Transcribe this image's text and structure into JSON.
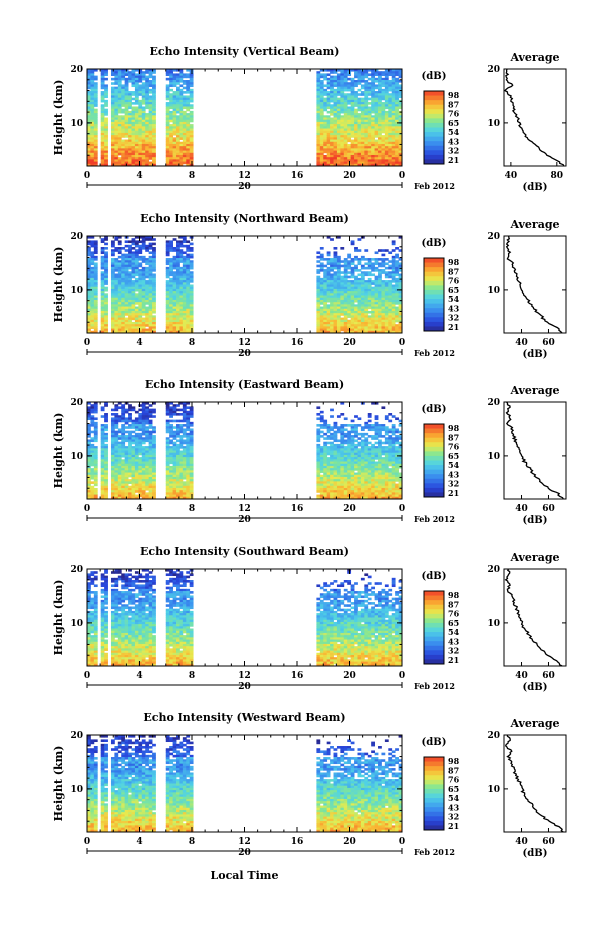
{
  "figure": {
    "x_axis_label": "Local Time",
    "date_label": "Feb 2012",
    "day_label": "20"
  },
  "chart_data": [
    {
      "type": "heatmap",
      "title": "Echo Intensity (Vertical Beam)",
      "ylabel": "Height (km)",
      "x_ticks": [
        "0",
        "4",
        "8",
        "12",
        "16",
        "20",
        "0"
      ],
      "y_ticks": [
        "20",
        "10"
      ],
      "xlim": [
        0,
        24
      ],
      "ylim": [
        2,
        20
      ],
      "gaps_hours": [
        [
          0.7,
          0.95
        ],
        [
          1.5,
          1.75
        ],
        [
          5.3,
          6.0
        ],
        [
          8.0,
          17.5
        ]
      ],
      "colorbar": {
        "unit": "(dB)",
        "levels": [
          "98",
          "87",
          "76",
          "65",
          "54",
          "43",
          "32",
          "21"
        ]
      },
      "average": {
        "title": "Average",
        "xlabel": "(dB)",
        "x_ticks": [
          "40",
          "80"
        ],
        "y_ticks": [
          "20",
          "10"
        ],
        "xlim": [
          34,
          88
        ],
        "profile": [
          [
            20,
            37
          ],
          [
            19,
            37
          ],
          [
            18,
            36
          ],
          [
            17,
            41
          ],
          [
            16,
            35
          ],
          [
            15,
            40
          ],
          [
            14,
            41
          ],
          [
            13,
            42
          ],
          [
            12,
            43
          ],
          [
            11,
            46
          ],
          [
            10,
            47
          ],
          [
            9,
            49
          ],
          [
            8,
            52
          ],
          [
            7,
            55
          ],
          [
            6,
            60
          ],
          [
            5,
            66
          ],
          [
            4,
            72
          ],
          [
            3,
            81
          ],
          [
            2,
            86
          ]
        ]
      }
    },
    {
      "type": "heatmap",
      "title": "Echo Intensity (Northward Beam)",
      "ylabel": "Height (km)",
      "x_ticks": [
        "0",
        "4",
        "8",
        "12",
        "16",
        "20",
        "0"
      ],
      "y_ticks": [
        "20",
        "10"
      ],
      "xlim": [
        0,
        24
      ],
      "ylim": [
        2,
        20
      ],
      "gaps_hours": [
        [
          0.7,
          0.95
        ],
        [
          1.5,
          1.75
        ],
        [
          5.3,
          6.0
        ],
        [
          8.0,
          17.5
        ]
      ],
      "colorbar": {
        "unit": "(dB)",
        "levels": [
          "98",
          "87",
          "76",
          "65",
          "54",
          "43",
          "32",
          "21"
        ]
      },
      "average": {
        "title": "Average",
        "xlabel": "(dB)",
        "x_ticks": [
          "40",
          "60"
        ],
        "y_ticks": [
          "20",
          "10"
        ],
        "xlim": [
          27,
          73
        ],
        "profile": [
          [
            20,
            31
          ],
          [
            19,
            30
          ],
          [
            18,
            29
          ],
          [
            17,
            31
          ],
          [
            16,
            29
          ],
          [
            15,
            33
          ],
          [
            14,
            34
          ],
          [
            13,
            36
          ],
          [
            12,
            37
          ],
          [
            11,
            39
          ],
          [
            10,
            40
          ],
          [
            9,
            42
          ],
          [
            8,
            45
          ],
          [
            7,
            48
          ],
          [
            6,
            51
          ],
          [
            5,
            55
          ],
          [
            4,
            59
          ],
          [
            3,
            66
          ],
          [
            2,
            70
          ]
        ]
      }
    },
    {
      "type": "heatmap",
      "title": "Echo Intensity (Eastward Beam)",
      "ylabel": "Height (km)",
      "x_ticks": [
        "0",
        "4",
        "8",
        "12",
        "16",
        "20",
        "0"
      ],
      "y_ticks": [
        "20",
        "10"
      ],
      "xlim": [
        0,
        24
      ],
      "ylim": [
        2,
        20
      ],
      "gaps_hours": [
        [
          0.7,
          0.95
        ],
        [
          1.5,
          1.75
        ],
        [
          5.3,
          6.0
        ],
        [
          8.0,
          17.5
        ]
      ],
      "colorbar": {
        "unit": "(dB)",
        "levels": [
          "98",
          "87",
          "76",
          "65",
          "54",
          "43",
          "32",
          "21"
        ]
      },
      "average": {
        "title": "Average",
        "xlabel": "(dB)",
        "x_ticks": [
          "40",
          "60"
        ],
        "y_ticks": [
          "20",
          "10"
        ],
        "xlim": [
          27,
          73
        ],
        "profile": [
          [
            20,
            30
          ],
          [
            19,
            31
          ],
          [
            18,
            29
          ],
          [
            17,
            32
          ],
          [
            16,
            30
          ],
          [
            15,
            33
          ],
          [
            14,
            34
          ],
          [
            13,
            35
          ],
          [
            12,
            37
          ],
          [
            11,
            39
          ],
          [
            10,
            40
          ],
          [
            9,
            42
          ],
          [
            8,
            45
          ],
          [
            7,
            48
          ],
          [
            6,
            51
          ],
          [
            5,
            55
          ],
          [
            4,
            60
          ],
          [
            3,
            67
          ],
          [
            2,
            71
          ]
        ]
      }
    },
    {
      "type": "heatmap",
      "title": "Echo Intensity (Southward Beam)",
      "ylabel": "Height (km)",
      "x_ticks": [
        "0",
        "4",
        "8",
        "12",
        "16",
        "20",
        "0"
      ],
      "y_ticks": [
        "20",
        "10"
      ],
      "xlim": [
        0,
        24
      ],
      "ylim": [
        2,
        20
      ],
      "gaps_hours": [
        [
          0.7,
          0.95
        ],
        [
          1.5,
          1.75
        ],
        [
          5.3,
          6.0
        ],
        [
          8.0,
          17.5
        ]
      ],
      "colorbar": {
        "unit": "(dB)",
        "levels": [
          "98",
          "87",
          "76",
          "65",
          "54",
          "43",
          "32",
          "21"
        ]
      },
      "average": {
        "title": "Average",
        "xlabel": "(dB)",
        "x_ticks": [
          "40",
          "60"
        ],
        "y_ticks": [
          "20",
          "10"
        ],
        "xlim": [
          27,
          73
        ],
        "profile": [
          [
            20,
            31
          ],
          [
            19,
            30
          ],
          [
            18,
            29
          ],
          [
            17,
            31
          ],
          [
            16,
            29
          ],
          [
            15,
            33
          ],
          [
            14,
            34
          ],
          [
            13,
            36
          ],
          [
            12,
            37
          ],
          [
            11,
            39
          ],
          [
            10,
            40
          ],
          [
            9,
            42
          ],
          [
            8,
            45
          ],
          [
            7,
            48
          ],
          [
            6,
            51
          ],
          [
            5,
            55
          ],
          [
            4,
            59
          ],
          [
            3,
            66
          ],
          [
            2,
            70
          ]
        ]
      }
    },
    {
      "type": "heatmap",
      "title": "Echo Intensity (Westward Beam)",
      "ylabel": "Height (km)",
      "x_ticks": [
        "0",
        "4",
        "8",
        "12",
        "16",
        "20",
        "0"
      ],
      "y_ticks": [
        "20",
        "10"
      ],
      "xlim": [
        0,
        24
      ],
      "ylim": [
        2,
        20
      ],
      "gaps_hours": [
        [
          0.7,
          0.95
        ],
        [
          1.5,
          1.75
        ],
        [
          5.3,
          6.0
        ],
        [
          8.0,
          17.5
        ]
      ],
      "colorbar": {
        "unit": "(dB)",
        "levels": [
          "98",
          "87",
          "76",
          "65",
          "54",
          "43",
          "32",
          "21"
        ]
      },
      "average": {
        "title": "Average",
        "xlabel": "(dB)",
        "x_ticks": [
          "40",
          "60"
        ],
        "y_ticks": [
          "20",
          "10"
        ],
        "xlim": [
          27,
          73
        ],
        "profile": [
          [
            20,
            30
          ],
          [
            19,
            31
          ],
          [
            18,
            29
          ],
          [
            17,
            32
          ],
          [
            16,
            30
          ],
          [
            15,
            33
          ],
          [
            14,
            34
          ],
          [
            13,
            35
          ],
          [
            12,
            37
          ],
          [
            11,
            39
          ],
          [
            10,
            40
          ],
          [
            9,
            42
          ],
          [
            8,
            45
          ],
          [
            7,
            48
          ],
          [
            6,
            51
          ],
          [
            5,
            55
          ],
          [
            4,
            60
          ],
          [
            3,
            67
          ],
          [
            2,
            71
          ]
        ]
      }
    }
  ]
}
